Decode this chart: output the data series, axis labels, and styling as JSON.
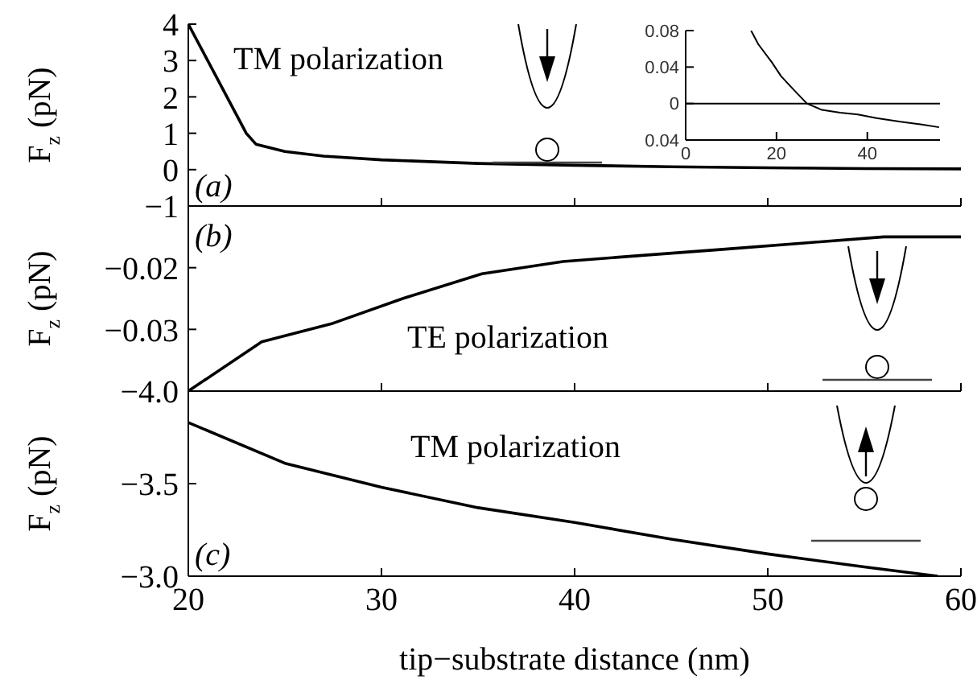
{
  "chart_data": [
    {
      "type": "line",
      "ylabel": "F$_{z}$ (pN)",
      "annotations": [
        "TM polarization",
        "(a)"
      ],
      "x": [
        20,
        21,
        22,
        23,
        23.5,
        25,
        27,
        30,
        35,
        40,
        45,
        50,
        55,
        60
      ],
      "values": [
        4,
        3,
        2,
        1,
        0.7,
        0.5,
        0.37,
        0.27,
        0.17,
        0.12,
        0.08,
        0.05,
        0.03,
        0.02
      ],
      "color": "#000000",
      "xlim": [
        20,
        60
      ],
      "xticks": [
        20,
        30,
        40,
        50,
        60
      ],
      "ylim": [
        -1,
        4
      ],
      "yticks": [
        {
          "value": -1,
          "label": "−1"
        },
        0,
        1,
        2,
        3,
        4
      ],
      "tick_labels": "y"
    },
    {
      "type": "line",
      "x": [
        14.4,
        16,
        19,
        21,
        23.8,
        26.7,
        30,
        34,
        37.9,
        42,
        47.3,
        52,
        55.8
      ],
      "values": [
        0.08,
        0.065,
        0.045,
        0.03,
        0.015,
        0,
        -0.007,
        -0.01,
        -0.012,
        -0.016,
        -0.02,
        -0.023,
        -0.026
      ],
      "color": "#000000",
      "xlim": [
        0,
        56
      ],
      "xticks": [
        0,
        20,
        40
      ],
      "ylim": [
        -0.04,
        0.08
      ],
      "yticks": [
        {
          "value": -0.04,
          "label": "0.04"
        },
        0,
        0.04,
        0.08
      ],
      "ref_lines": [
        {
          "axis": "y",
          "value": 0
        }
      ]
    },
    {
      "type": "line",
      "ylabel": "F$_{z}$ (pN)",
      "annotations": [
        "(b)",
        "TE polarization"
      ],
      "x": [
        20,
        23.8,
        27.5,
        31.1,
        35.2,
        39.4,
        43.5,
        47.8,
        51.9,
        56,
        60
      ],
      "values": [
        -0.04,
        -0.032,
        -0.029,
        -0.025,
        -0.021,
        -0.019,
        -0.018,
        -0.017,
        -0.016,
        -0.015,
        -0.015
      ],
      "color": "#000000",
      "xlim": [
        20,
        60
      ],
      "xticks": [
        20,
        30,
        40,
        50,
        60
      ],
      "ylim": [
        -0.04,
        -0.01
      ],
      "yticks": [
        {
          "value": -0.03,
          "label": "−0.03"
        },
        {
          "value": -0.02,
          "label": "−0.02"
        }
      ],
      "tick_labels": "y"
    },
    {
      "type": "line",
      "ylabel": "F$_{z}$ (pN)",
      "xlabel": "tip−substrate distance (nm)",
      "annotations": [
        "TM polarization",
        "(c)"
      ],
      "x": [
        20,
        25,
        30,
        35,
        40,
        45,
        50,
        55,
        58.8
      ],
      "values": [
        -3.83,
        -3.61,
        -3.48,
        -3.37,
        -3.29,
        -3.2,
        -3.12,
        -3.05,
        -3.0
      ],
      "color": "#000000",
      "xlim": [
        20,
        60
      ],
      "xticks": [
        20,
        30,
        40,
        50,
        60
      ],
      "ylim": [
        -3.0,
        -4.0
      ],
      "yticks": [
        {
          "value": -4,
          "label": "−4.0"
        },
        {
          "value": -3.5,
          "label": "−3.5"
        },
        {
          "value": -3,
          "label": "−3.0"
        }
      ]
    }
  ]
}
